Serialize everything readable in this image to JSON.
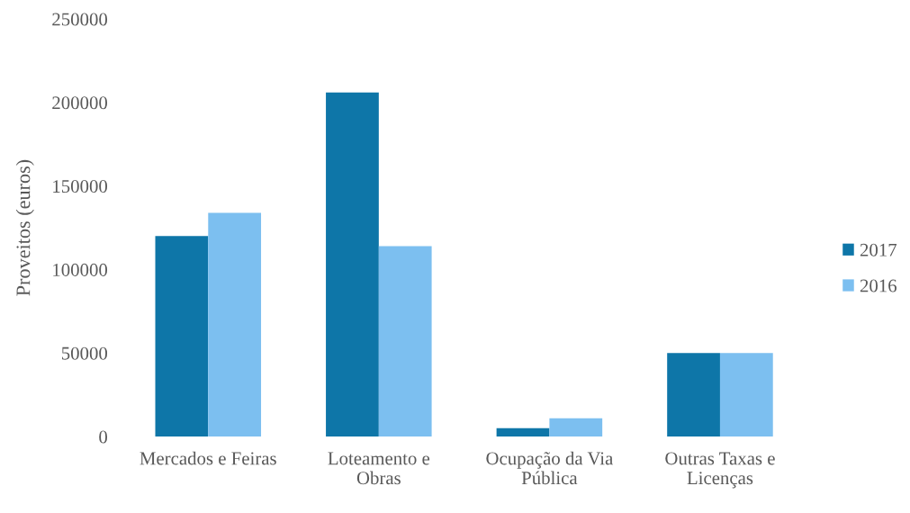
{
  "chart_data": {
    "type": "bar",
    "ylabel": "Proveitos (euros)",
    "categories": [
      "Mercados e Feiras",
      "Loteamento e\nObras",
      "Ocupação da Via\nPública",
      "Outras Taxas e\nLicenças"
    ],
    "series": [
      {
        "name": "2017",
        "color": "#0e76a8",
        "values": [
          120000,
          206000,
          5000,
          50000
        ]
      },
      {
        "name": "2016",
        "color": "#7cbff0",
        "values": [
          134000,
          114000,
          11000,
          50000
        ]
      }
    ],
    "ylim": [
      0,
      250000
    ],
    "yticks": [
      0,
      50000,
      100000,
      150000,
      200000,
      250000
    ],
    "grid": false,
    "legend": "right"
  }
}
